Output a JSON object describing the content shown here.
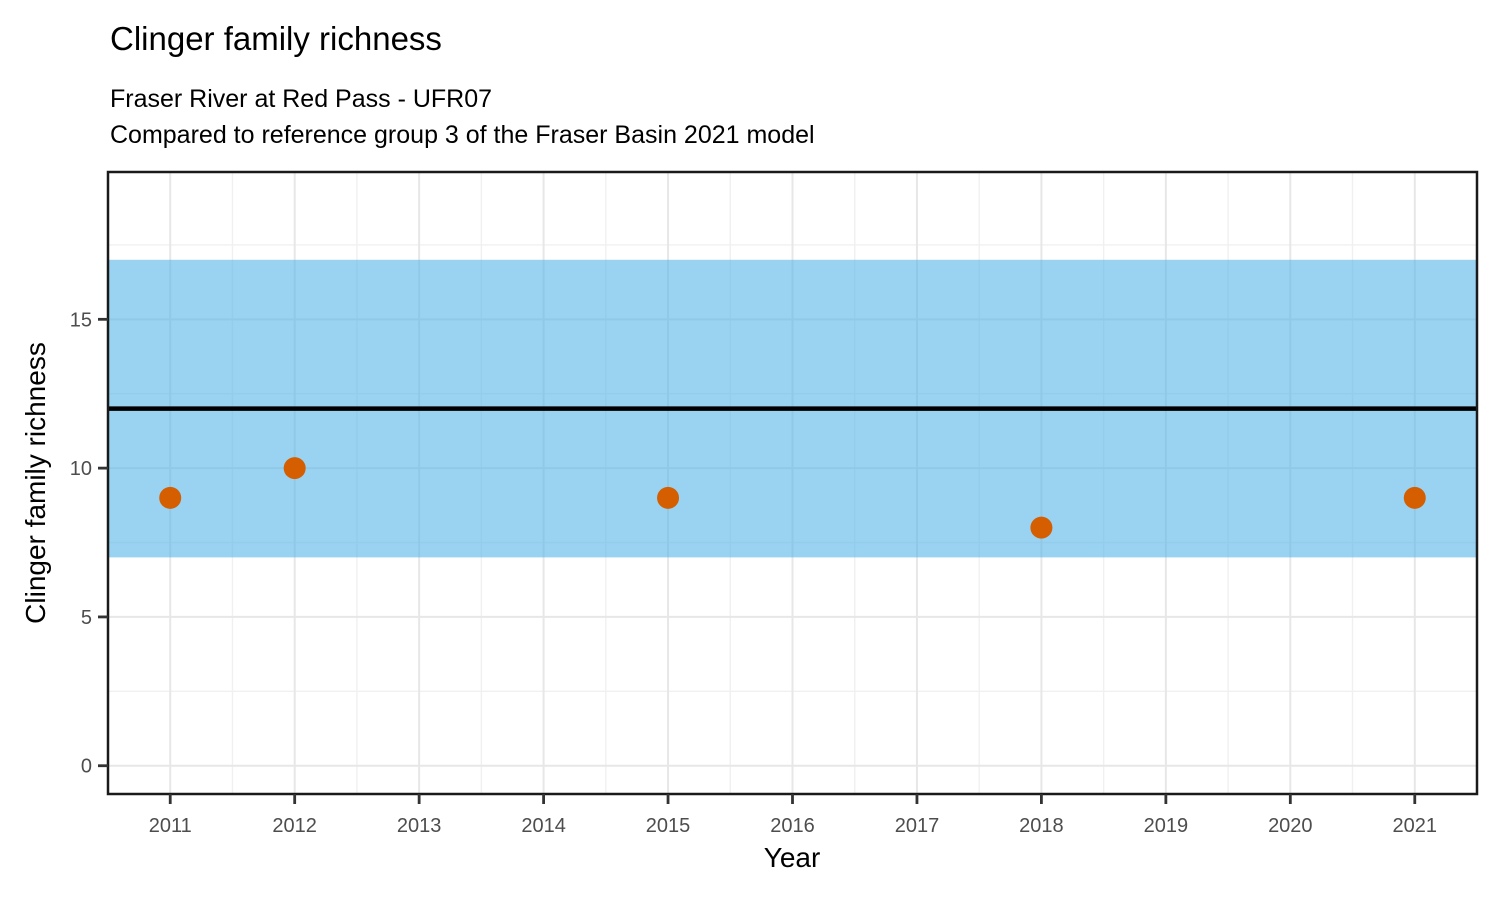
{
  "chart_data": {
    "type": "scatter",
    "title": "Clinger family richness",
    "subtitle": [
      "Fraser River at Red Pass - UFR07",
      "Compared to reference group 3 of the Fraser Basin 2021 model"
    ],
    "xlabel": "Year",
    "ylabel": "Clinger family richness",
    "points": [
      {
        "x": 2011,
        "y": 9
      },
      {
        "x": 2012,
        "y": 10
      },
      {
        "x": 2015,
        "y": 9
      },
      {
        "x": 2018,
        "y": 8
      },
      {
        "x": 2021,
        "y": 9
      }
    ],
    "reference_band": {
      "ymin": 7,
      "ymax": 17
    },
    "reference_line": {
      "y": 12
    },
    "x_ticks": [
      2011,
      2012,
      2013,
      2014,
      2015,
      2016,
      2017,
      2018,
      2019,
      2020,
      2021
    ],
    "y_ticks": [
      0,
      5,
      10,
      15
    ],
    "x_minor_ticks": [
      2011.5,
      2012.5,
      2013.5,
      2014.5,
      2015.5,
      2016.5,
      2017.5,
      2018.5,
      2019.5,
      2020.5
    ],
    "y_minor_ticks": [
      2.5,
      7.5,
      12.5,
      17.5
    ],
    "xlim": [
      2010.5,
      2021.5
    ],
    "ylim": [
      -0.95,
      19.95
    ],
    "grid": true,
    "legend": false,
    "colors": {
      "band": "#56B4E9",
      "band_opacity": 0.6,
      "point": "#D55E00",
      "reference_line": "#000000",
      "grid_major": "#E7E7E7",
      "grid_minor": "#F0F0F0",
      "panel_border": "#1A1A1A",
      "tick_mark": "#333333",
      "tick_label": "#4D4D4D",
      "axis_title": "#000000"
    }
  }
}
